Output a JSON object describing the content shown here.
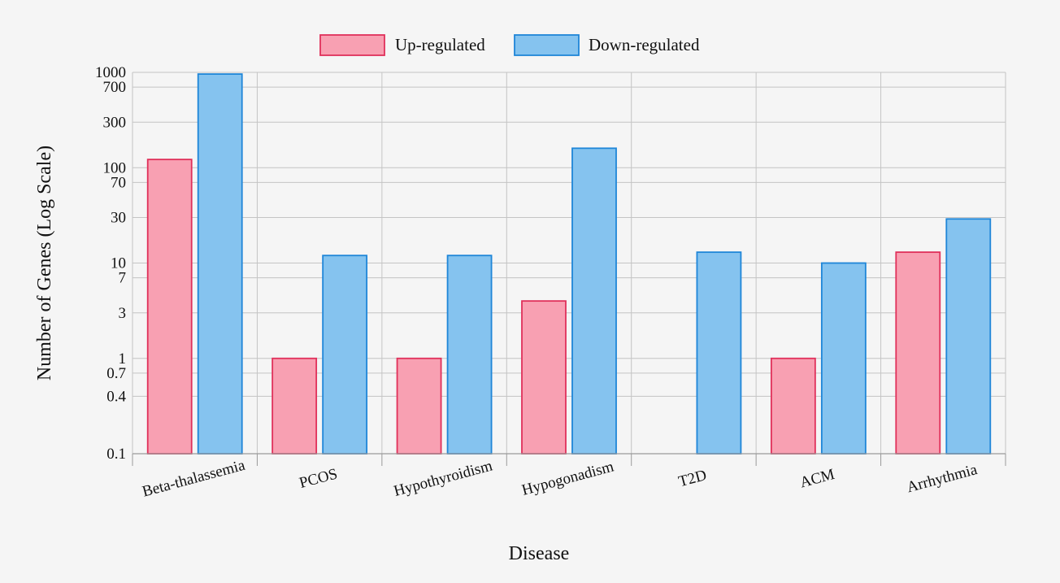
{
  "chart_data": {
    "type": "bar",
    "x_axis_title": "Disease",
    "y_axis_title": "Number of Genes (Log Scale)",
    "y_scale": "log",
    "ylim": [
      0.1,
      1000
    ],
    "y_ticks": [
      0.1,
      0.4,
      0.7,
      1,
      3,
      7,
      10,
      30,
      70,
      100,
      300,
      700,
      1000
    ],
    "y_tick_labels": [
      "0.1",
      "0.4",
      "0.7",
      "1",
      "3",
      "7",
      "10",
      "30",
      "70",
      "100",
      "300",
      "700",
      "1000"
    ],
    "grid": true,
    "legend_position": "top-center",
    "categories": [
      "Beta-thalassemia",
      "PCOS",
      "Hypothyroidism",
      "Hypogonadism",
      "T2D",
      "ACM",
      "Arrhythmia"
    ],
    "series": [
      {
        "name": "Up-regulated",
        "values": [
          122,
          1,
          1,
          4,
          0,
          1,
          13
        ],
        "fill": "#f8a0b2",
        "stroke": "#e0305a"
      },
      {
        "name": "Down-regulated",
        "values": [
          960,
          12,
          12,
          160,
          13,
          10,
          29
        ],
        "fill": "#85c3ef",
        "stroke": "#1f86d8"
      }
    ]
  }
}
